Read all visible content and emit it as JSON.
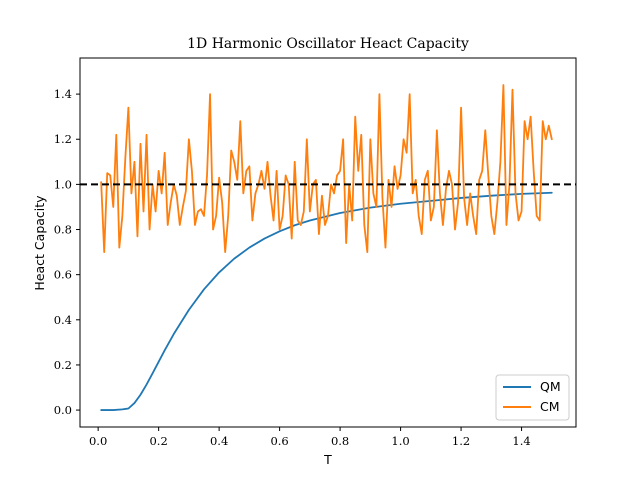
{
  "chart_data": {
    "type": "line",
    "title": "1D Harmonic Oscillator Heact Capacity",
    "xlabel": "T",
    "ylabel": "Heact Capacity",
    "xlim": [
      -0.06,
      1.58
    ],
    "ylim": [
      -0.075,
      1.56
    ],
    "xticks": [
      0.0,
      0.2,
      0.4,
      0.6,
      0.8,
      1.0,
      1.2,
      1.4
    ],
    "xtick_labels": [
      "0.0",
      "0.2",
      "0.4",
      "0.6",
      "0.8",
      "1.0",
      "1.2",
      "1.4"
    ],
    "yticks": [
      0.0,
      0.2,
      0.4,
      0.6,
      0.8,
      1.0,
      1.2,
      1.4
    ],
    "ytick_labels": [
      "0.0",
      "0.2",
      "0.4",
      "0.6",
      "0.8",
      "1.0",
      "1.2",
      "1.4"
    ],
    "grid": false,
    "legend_position": "bottom-right",
    "reference_line": {
      "y": 1.0,
      "style": "dashed",
      "color": "#000000"
    },
    "series": [
      {
        "name": "QM",
        "color": "#1f77b4",
        "x": [
          0.01,
          0.05,
          0.08,
          0.1,
          0.12,
          0.14,
          0.16,
          0.18,
          0.2,
          0.22,
          0.25,
          0.3,
          0.35,
          0.4,
          0.45,
          0.5,
          0.55,
          0.6,
          0.65,
          0.7,
          0.8,
          0.9,
          1.0,
          1.1,
          1.2,
          1.3,
          1.4,
          1.5
        ],
        "y": [
          0.0,
          0.0,
          0.003,
          0.007,
          0.031,
          0.068,
          0.113,
          0.163,
          0.214,
          0.265,
          0.337,
          0.444,
          0.535,
          0.61,
          0.671,
          0.72,
          0.76,
          0.792,
          0.819,
          0.84,
          0.873,
          0.897,
          0.914,
          0.927,
          0.94,
          0.95,
          0.958,
          0.963
        ]
      },
      {
        "name": "CM",
        "color": "#ff7f0e",
        "x": [
          0.01,
          0.02,
          0.03,
          0.04,
          0.05,
          0.06,
          0.07,
          0.08,
          0.09,
          0.1,
          0.11,
          0.12,
          0.13,
          0.14,
          0.15,
          0.16,
          0.17,
          0.18,
          0.19,
          0.2,
          0.21,
          0.22,
          0.23,
          0.24,
          0.25,
          0.26,
          0.27,
          0.28,
          0.29,
          0.3,
          0.31,
          0.32,
          0.33,
          0.34,
          0.35,
          0.36,
          0.37,
          0.38,
          0.39,
          0.4,
          0.41,
          0.42,
          0.43,
          0.44,
          0.45,
          0.46,
          0.47,
          0.48,
          0.49,
          0.5,
          0.51,
          0.52,
          0.53,
          0.54,
          0.55,
          0.56,
          0.57,
          0.58,
          0.59,
          0.6,
          0.61,
          0.62,
          0.63,
          0.64,
          0.65,
          0.66,
          0.67,
          0.68,
          0.69,
          0.7,
          0.71,
          0.72,
          0.73,
          0.74,
          0.75,
          0.76,
          0.77,
          0.78,
          0.79,
          0.8,
          0.81,
          0.82,
          0.83,
          0.84,
          0.85,
          0.86,
          0.87,
          0.88,
          0.89,
          0.9,
          0.91,
          0.92,
          0.93,
          0.94,
          0.95,
          0.96,
          0.97,
          0.98,
          0.99,
          1.0,
          1.01,
          1.02,
          1.03,
          1.04,
          1.05,
          1.06,
          1.07,
          1.08,
          1.09,
          1.1,
          1.11,
          1.12,
          1.13,
          1.14,
          1.15,
          1.16,
          1.17,
          1.18,
          1.19,
          1.2,
          1.21,
          1.22,
          1.23,
          1.24,
          1.25,
          1.26,
          1.27,
          1.28,
          1.29,
          1.3,
          1.31,
          1.32,
          1.33,
          1.34,
          1.35,
          1.36,
          1.37,
          1.38,
          1.39,
          1.4,
          1.41,
          1.42,
          1.43,
          1.44,
          1.45,
          1.46,
          1.47,
          1.48,
          1.49,
          1.5
        ],
        "y": [
          1.01,
          0.7,
          1.05,
          1.04,
          0.9,
          1.22,
          0.72,
          0.86,
          1.12,
          1.34,
          0.96,
          1.1,
          0.77,
          1.18,
          0.88,
          1.22,
          0.8,
          1.0,
          0.88,
          1.06,
          0.96,
          1.14,
          0.82,
          0.92,
          1.0,
          0.95,
          0.82,
          0.9,
          0.97,
          1.2,
          1.06,
          0.82,
          0.88,
          0.89,
          0.86,
          1.04,
          1.4,
          0.8,
          0.86,
          1.03,
          0.92,
          0.7,
          0.86,
          1.15,
          1.1,
          1.02,
          1.28,
          0.96,
          1.06,
          1.08,
          0.84,
          0.96,
          1.0,
          1.06,
          0.98,
          1.1,
          0.95,
          0.84,
          1.06,
          0.8,
          0.86,
          1.04,
          1.0,
          0.76,
          1.1,
          0.84,
          0.82,
          0.88,
          1.2,
          0.88,
          1.0,
          1.02,
          0.78,
          0.95,
          0.82,
          0.86,
          1.0,
          0.96,
          1.04,
          1.06,
          1.2,
          0.74,
          1.0,
          0.84,
          1.3,
          1.06,
          1.22,
          0.82,
          0.7,
          1.2,
          0.96,
          0.9,
          1.4,
          0.94,
          0.72,
          1.02,
          0.9,
          1.08,
          0.98,
          1.04,
          1.2,
          1.14,
          1.4,
          0.96,
          1.02,
          0.86,
          0.78,
          1.02,
          1.06,
          0.84,
          0.9,
          1.24,
          0.96,
          0.82,
          0.98,
          1.06,
          1.0,
          0.8,
          0.92,
          1.34,
          0.94,
          0.82,
          0.96,
          0.86,
          0.78,
          1.02,
          1.06,
          1.24,
          1.04,
          0.86,
          0.78,
          0.92,
          1.1,
          1.44,
          0.82,
          1.0,
          1.42,
          0.96,
          0.84,
          0.88,
          1.28,
          1.2,
          1.3,
          1.06,
          0.86,
          0.84,
          1.28,
          1.2,
          1.26,
          1.2
        ]
      }
    ]
  }
}
